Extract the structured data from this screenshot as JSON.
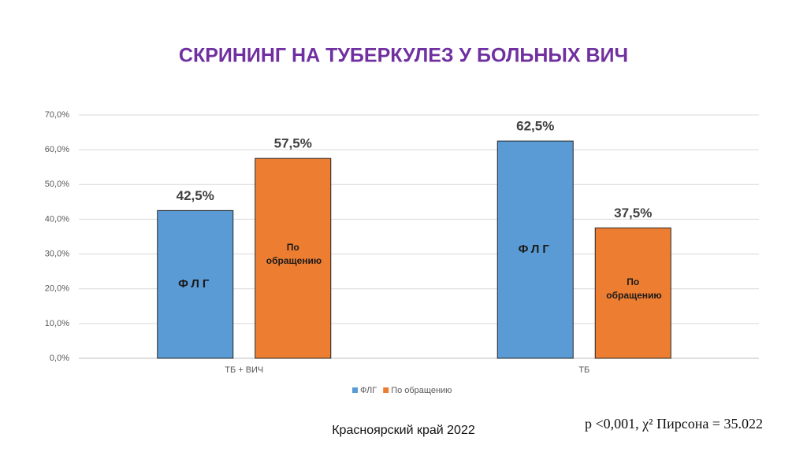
{
  "chart_data": {
    "type": "bar",
    "title": "СКРИНИНГ НА ТУБЕРКУЛЕЗ У БОЛЬНЫХ ВИЧ",
    "categories": [
      "ТБ + ВИЧ",
      "ТБ"
    ],
    "series": [
      {
        "name": "ФЛГ",
        "color": "#5b9bd5",
        "values": [
          42.5,
          62.5
        ],
        "value_labels": [
          "42,5%",
          "62,5%"
        ],
        "inner_label": "ФЛГ"
      },
      {
        "name": "По обращению",
        "color": "#ed7d31",
        "values": [
          57.5,
          37.5
        ],
        "value_labels": [
          "57,5%",
          "37,5%"
        ],
        "inner_label": "По обращению"
      }
    ],
    "ylim": [
      0,
      70
    ],
    "yticks": [
      {
        "value": 0,
        "label": "0,0%"
      },
      {
        "value": 10,
        "label": "10,0%"
      },
      {
        "value": 20,
        "label": "20,0%"
      },
      {
        "value": 30,
        "label": "30,0%"
      },
      {
        "value": 40,
        "label": "40,0%"
      },
      {
        "value": 50,
        "label": "50,0%"
      },
      {
        "value": 60,
        "label": "60,0%"
      },
      {
        "value": 70,
        "label": "70,0%"
      }
    ],
    "grid": true,
    "legend": "bottom",
    "annotations": [
      "Красноярский край 2022",
      "р <0,001, χ² Пирсона = 35.022"
    ]
  }
}
